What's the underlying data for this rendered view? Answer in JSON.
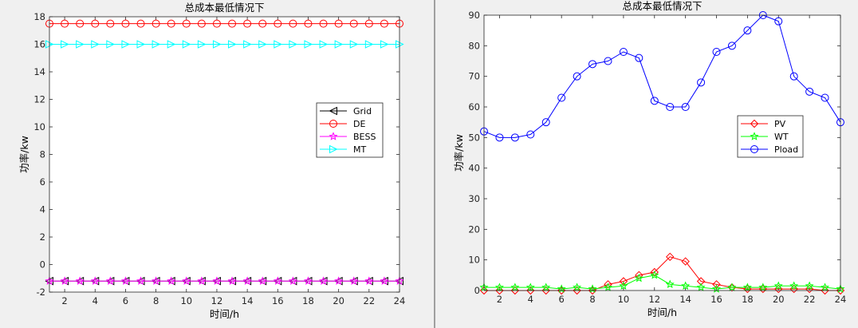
{
  "chart_data": [
    {
      "type": "line",
      "title": "总成本最低情况下",
      "xlabel": "时间/h",
      "ylabel": "功率/kw",
      "xlim": [
        1,
        24
      ],
      "ylim": [
        -2,
        18
      ],
      "xticks": [
        2,
        4,
        6,
        8,
        10,
        12,
        14,
        16,
        18,
        20,
        22,
        24
      ],
      "yticks": [
        -2,
        0,
        2,
        4,
        6,
        8,
        10,
        12,
        14,
        16,
        18
      ],
      "grid": false,
      "legend": "center-right",
      "x": [
        1,
        2,
        3,
        4,
        5,
        6,
        7,
        8,
        9,
        10,
        11,
        12,
        13,
        14,
        15,
        16,
        17,
        18,
        19,
        20,
        21,
        22,
        23,
        24
      ],
      "series": [
        {
          "name": "Grid",
          "color": "#000000",
          "marker": "triangle-left",
          "values": [
            -1.2,
            -1.2,
            -1.2,
            -1.2,
            -1.2,
            -1.2,
            -1.2,
            -1.2,
            -1.2,
            -1.2,
            -1.2,
            -1.2,
            -1.2,
            -1.2,
            -1.2,
            -1.2,
            -1.2,
            -1.2,
            -1.2,
            -1.2,
            -1.2,
            -1.2,
            -1.2,
            -1.2
          ]
        },
        {
          "name": "DE",
          "color": "#ff0000",
          "marker": "circle",
          "values": [
            17.5,
            17.5,
            17.5,
            17.5,
            17.5,
            17.5,
            17.5,
            17.5,
            17.5,
            17.5,
            17.5,
            17.5,
            17.5,
            17.5,
            17.5,
            17.5,
            17.5,
            17.5,
            17.5,
            17.5,
            17.5,
            17.5,
            17.5,
            17.5
          ]
        },
        {
          "name": "BESS",
          "color": "#ff00ff",
          "marker": "star",
          "values": [
            -1.2,
            -1.2,
            -1.2,
            -1.2,
            -1.2,
            -1.2,
            -1.2,
            -1.2,
            -1.2,
            -1.2,
            -1.2,
            -1.2,
            -1.2,
            -1.2,
            -1.2,
            -1.2,
            -1.2,
            -1.2,
            -1.2,
            -1.2,
            -1.2,
            -1.2,
            -1.2,
            -1.2
          ]
        },
        {
          "name": "MT",
          "color": "#00ffff",
          "marker": "triangle-right",
          "values": [
            16,
            16,
            16,
            16,
            16,
            16,
            16,
            16,
            16,
            16,
            16,
            16,
            16,
            16,
            16,
            16,
            16,
            16,
            16,
            16,
            16,
            16,
            16,
            16
          ]
        }
      ]
    },
    {
      "type": "line",
      "title": "总成本最低情况下",
      "xlabel": "时间/h",
      "ylabel": "功率/kw",
      "xlim": [
        1,
        24
      ],
      "ylim": [
        0,
        90
      ],
      "xticks": [
        2,
        4,
        6,
        8,
        10,
        12,
        14,
        16,
        18,
        20,
        22,
        24
      ],
      "yticks": [
        0,
        10,
        20,
        30,
        40,
        50,
        60,
        70,
        80,
        90
      ],
      "grid": false,
      "legend": "center-right",
      "x": [
        1,
        2,
        3,
        4,
        5,
        6,
        7,
        8,
        9,
        10,
        11,
        12,
        13,
        14,
        15,
        16,
        17,
        18,
        19,
        20,
        21,
        22,
        23,
        24
      ],
      "series": [
        {
          "name": "PV",
          "color": "#ff0000",
          "marker": "diamond",
          "values": [
            0,
            0,
            0,
            0,
            0,
            0,
            0,
            0,
            2,
            3,
            5,
            6,
            11,
            9.5,
            3,
            2,
            1,
            0.5,
            0.5,
            0.5,
            0.5,
            0.5,
            0,
            0
          ]
        },
        {
          "name": "WT",
          "color": "#00ff00",
          "marker": "star",
          "values": [
            1,
            1,
            1,
            1,
            1,
            0.5,
            1,
            0.5,
            1,
            1.5,
            4,
            5,
            2,
            1.5,
            1,
            0.5,
            1,
            1,
            1,
            1.5,
            1.5,
            1.5,
            1,
            0.5
          ]
        },
        {
          "name": "Pload",
          "color": "#0000ff",
          "marker": "circle",
          "values": [
            52,
            50,
            50,
            51,
            55,
            63,
            70,
            74,
            75,
            78,
            76,
            62,
            60,
            60,
            68,
            78,
            80,
            85,
            90,
            88,
            70,
            65,
            63,
            55
          ]
        }
      ]
    }
  ]
}
